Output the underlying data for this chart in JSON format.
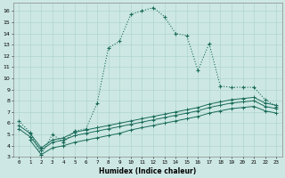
{
  "xlabel": "Humidex (Indice chaleur)",
  "background_color": "#cde8e4",
  "grid_color": "#b0d4ce",
  "line_color": "#1a6b5a",
  "xlim": [
    -0.5,
    23.5
  ],
  "ylim": [
    3,
    16.7
  ],
  "xticks": [
    0,
    1,
    2,
    3,
    4,
    5,
    6,
    7,
    8,
    9,
    10,
    11,
    12,
    13,
    14,
    15,
    16,
    17,
    18,
    19,
    20,
    21,
    22,
    23
  ],
  "yticks": [
    3,
    4,
    5,
    6,
    7,
    8,
    9,
    10,
    11,
    12,
    13,
    14,
    15,
    16
  ],
  "s1_x": [
    0,
    1,
    2,
    3,
    4,
    5,
    6,
    7,
    8,
    9,
    10,
    11,
    12,
    13,
    14,
    15,
    16,
    17,
    18,
    19,
    20,
    21,
    22,
    23
  ],
  "s1_y": [
    6.2,
    5.2,
    3.2,
    5.0,
    4.3,
    5.3,
    5.5,
    7.8,
    12.7,
    13.3,
    15.7,
    16.0,
    16.3,
    15.5,
    14.0,
    13.8,
    10.7,
    13.1,
    9.3,
    9.2,
    9.2,
    9.2,
    8.1,
    7.5
  ],
  "s2_x": [
    0,
    1,
    2,
    3,
    4,
    5,
    6,
    7,
    8,
    9,
    10,
    11,
    12,
    13,
    14,
    15,
    16,
    17,
    18,
    19,
    20,
    21,
    22,
    23
  ],
  "s2_y": [
    5.8,
    5.1,
    3.8,
    4.5,
    4.7,
    5.2,
    5.4,
    5.6,
    5.8,
    6.0,
    6.2,
    6.4,
    6.6,
    6.8,
    7.0,
    7.2,
    7.4,
    7.7,
    7.9,
    8.1,
    8.2,
    8.3,
    7.8,
    7.6
  ],
  "s3_x": [
    0,
    1,
    2,
    3,
    4,
    5,
    6,
    7,
    8,
    9,
    10,
    11,
    12,
    13,
    14,
    15,
    16,
    17,
    18,
    19,
    20,
    21,
    22,
    23
  ],
  "s3_y": [
    5.5,
    4.8,
    3.6,
    4.3,
    4.5,
    4.9,
    5.1,
    5.3,
    5.5,
    5.7,
    5.9,
    6.1,
    6.3,
    6.5,
    6.7,
    6.9,
    7.1,
    7.4,
    7.6,
    7.8,
    7.9,
    8.0,
    7.5,
    7.3
  ],
  "s4_x": [
    1,
    2,
    3,
    4,
    5,
    6,
    7,
    8,
    9,
    10,
    11,
    12,
    13,
    14,
    15,
    16,
    17,
    18,
    19,
    20,
    21,
    22,
    23
  ],
  "s4_y": [
    4.5,
    3.2,
    3.8,
    4.0,
    4.3,
    4.5,
    4.7,
    4.9,
    5.1,
    5.4,
    5.6,
    5.8,
    6.0,
    6.2,
    6.4,
    6.6,
    6.9,
    7.1,
    7.3,
    7.4,
    7.5,
    7.1,
    6.9
  ]
}
